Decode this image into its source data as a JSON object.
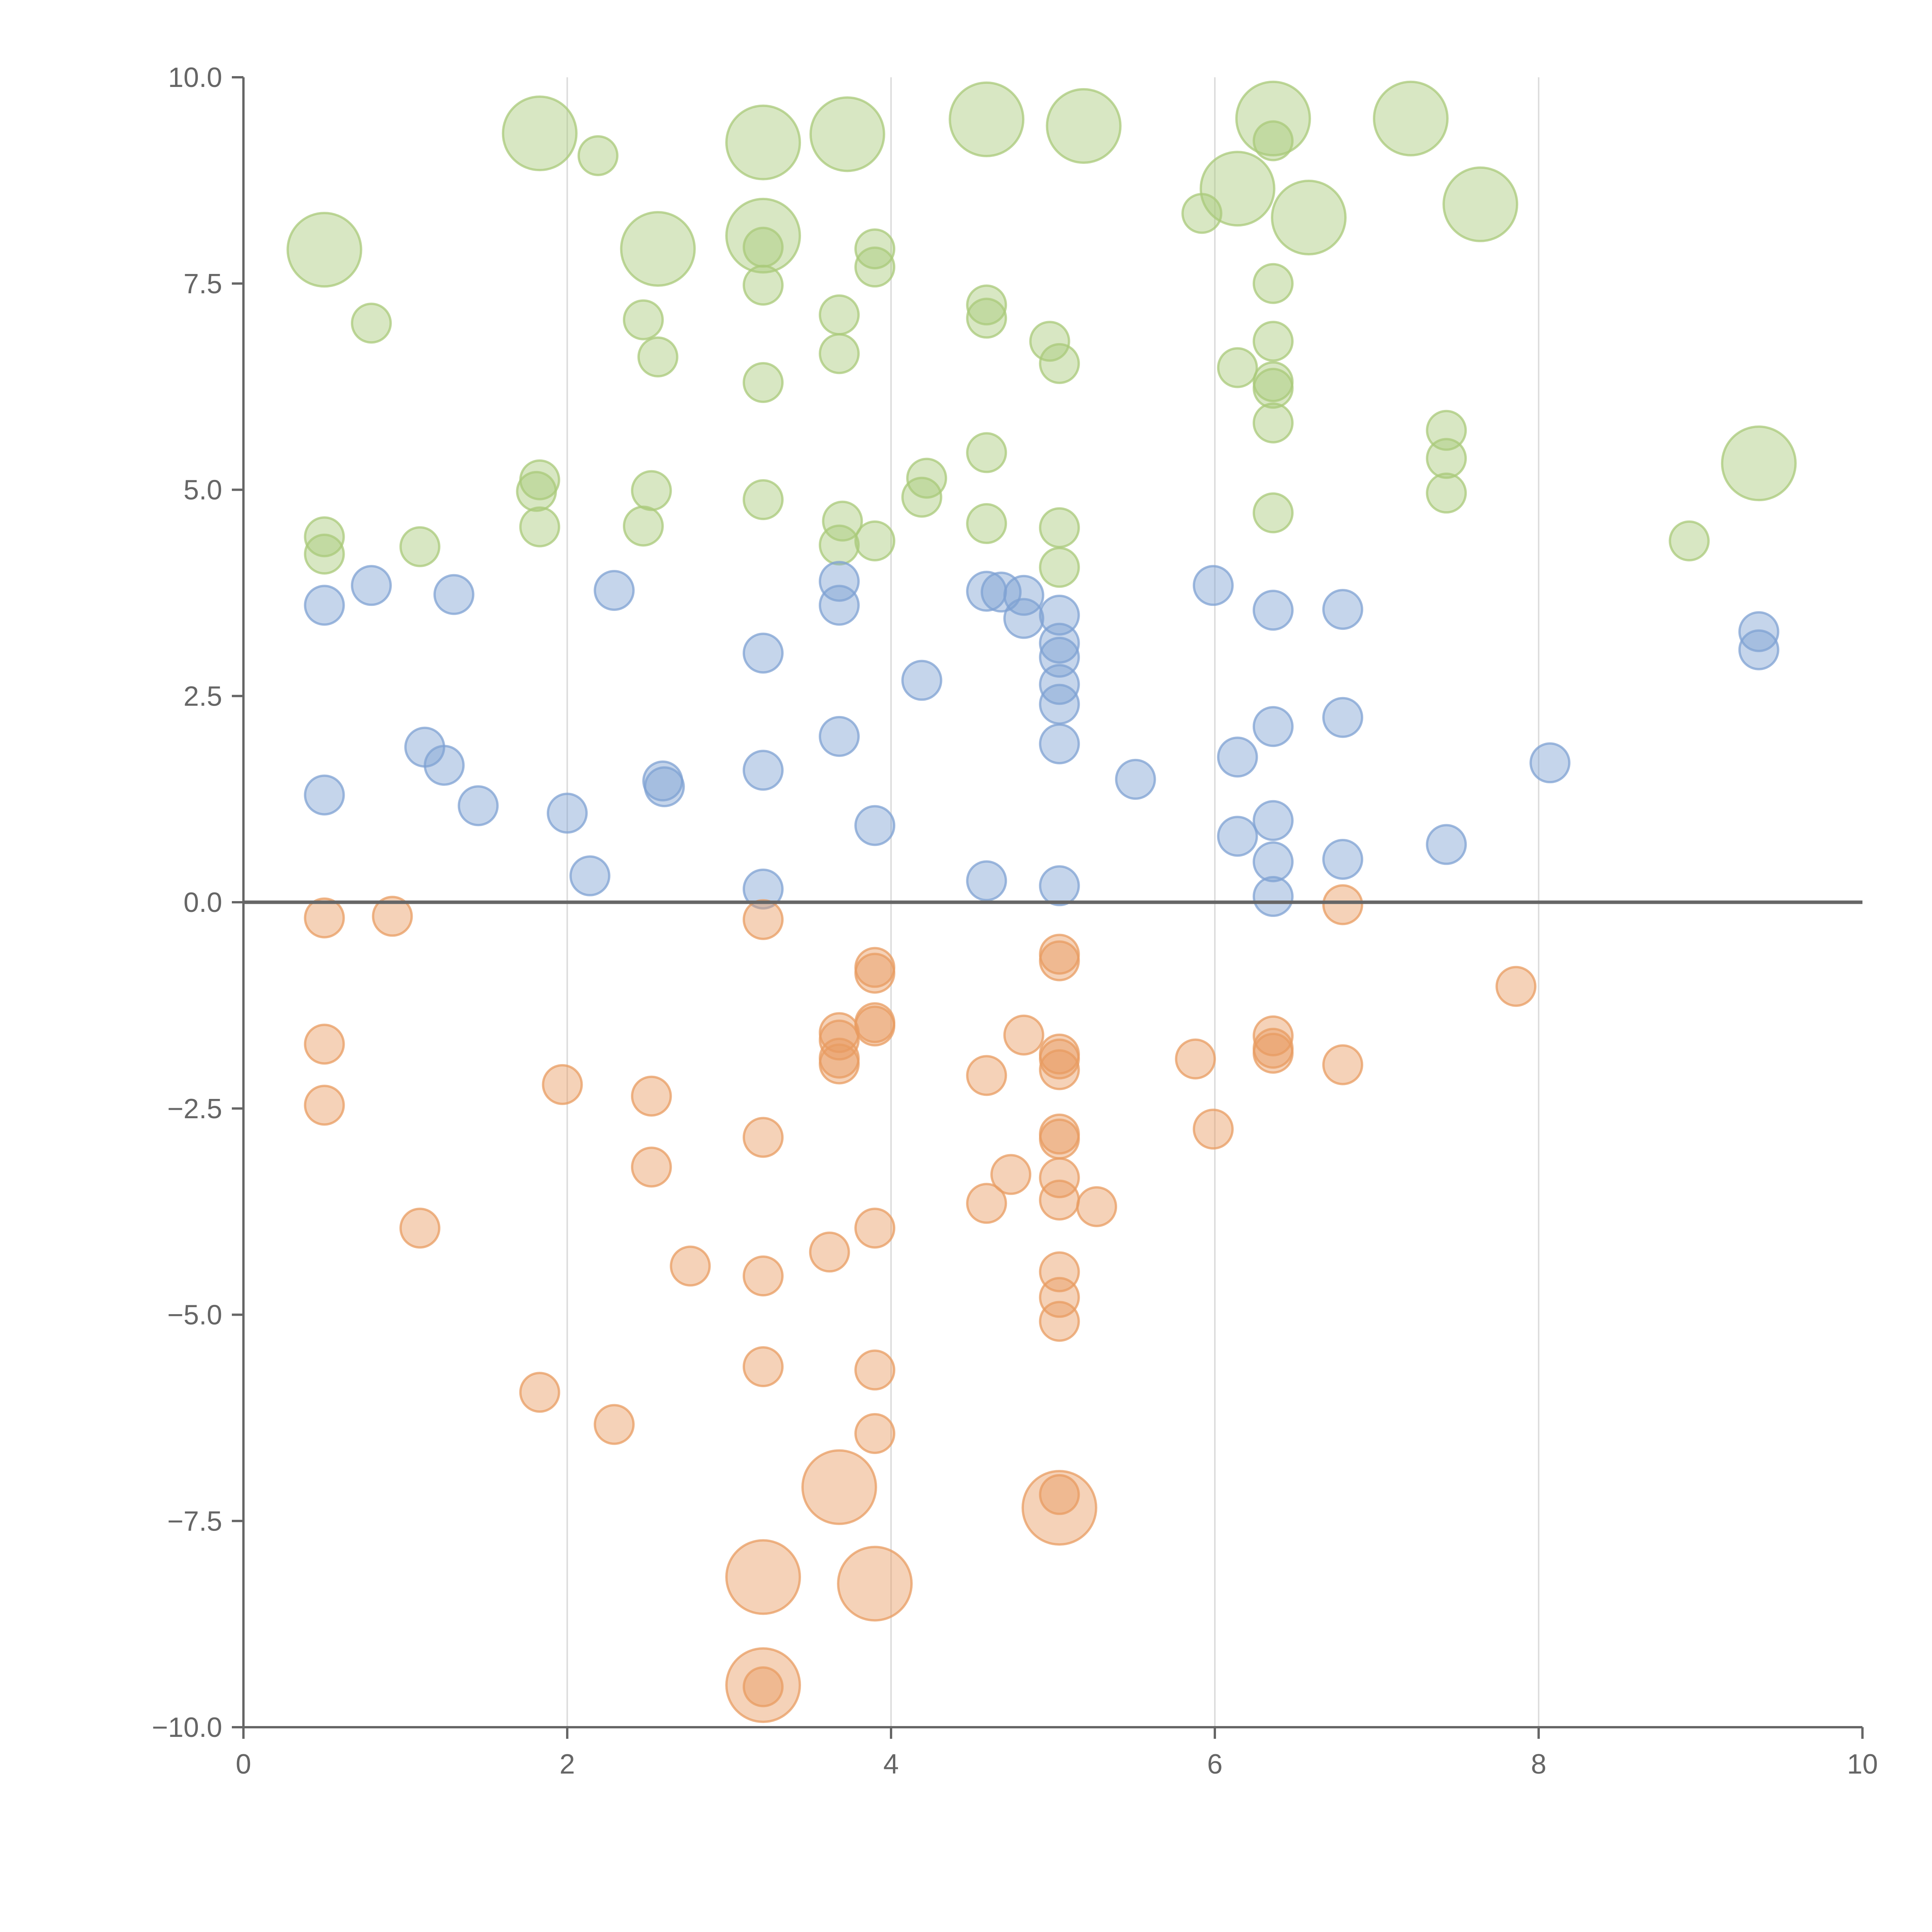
{
  "chart_data": {
    "type": "scatter",
    "title": "",
    "xlabel": "",
    "ylabel": "",
    "xlim": [
      0,
      10
    ],
    "ylim": [
      -10,
      10
    ],
    "x_ticks": [
      "0",
      "2",
      "4",
      "6",
      "8",
      "10"
    ],
    "y_ticks": [
      "10.0",
      "7.5",
      "5.0",
      "2.5",
      "0.0",
      "−2.5",
      "−5.0",
      "−7.5",
      "−10.0"
    ],
    "x_grid": [
      2,
      4,
      6,
      8
    ],
    "zero_line": 0,
    "colors": {
      "green": "#a9c97a",
      "blue": "#7fa1d3",
      "orange": "#e89c62"
    },
    "series": [
      {
        "name": "green",
        "color": "#a9c97a",
        "points": [
          {
            "x": 1.83,
            "y": 9.32,
            "s": 3
          },
          {
            "x": 2.19,
            "y": 9.05,
            "s": 1
          },
          {
            "x": 3.21,
            "y": 9.21,
            "s": 3
          },
          {
            "x": 3.73,
            "y": 9.31,
            "s": 3
          },
          {
            "x": 4.59,
            "y": 9.49,
            "s": 3
          },
          {
            "x": 5.19,
            "y": 9.41,
            "s": 3
          },
          {
            "x": 6.36,
            "y": 9.5,
            "s": 3
          },
          {
            "x": 7.21,
            "y": 9.5,
            "s": 3
          },
          {
            "x": 6.36,
            "y": 9.23,
            "s": 1
          },
          {
            "x": 6.14,
            "y": 8.65,
            "s": 3
          },
          {
            "x": 6.58,
            "y": 8.3,
            "s": 3
          },
          {
            "x": 5.92,
            "y": 8.35,
            "s": 1
          },
          {
            "x": 7.64,
            "y": 8.46,
            "s": 3
          },
          {
            "x": 0.5,
            "y": 7.91,
            "s": 3
          },
          {
            "x": 2.56,
            "y": 7.92,
            "s": 3
          },
          {
            "x": 3.21,
            "y": 8.08,
            "s": 3
          },
          {
            "x": 3.21,
            "y": 7.94,
            "s": 1
          },
          {
            "x": 3.9,
            "y": 7.92,
            "s": 1
          },
          {
            "x": 3.9,
            "y": 7.7,
            "s": 1
          },
          {
            "x": 3.21,
            "y": 7.48,
            "s": 1
          },
          {
            "x": 6.36,
            "y": 7.5,
            "s": 1
          },
          {
            "x": 0.79,
            "y": 7.02,
            "s": 1
          },
          {
            "x": 2.47,
            "y": 7.06,
            "s": 1
          },
          {
            "x": 3.68,
            "y": 7.12,
            "s": 1
          },
          {
            "x": 4.59,
            "y": 7.24,
            "s": 1
          },
          {
            "x": 4.59,
            "y": 7.08,
            "s": 1
          },
          {
            "x": 4.98,
            "y": 6.8,
            "s": 1
          },
          {
            "x": 5.04,
            "y": 6.53,
            "s": 1
          },
          {
            "x": 6.36,
            "y": 6.8,
            "s": 1
          },
          {
            "x": 2.56,
            "y": 6.61,
            "s": 1
          },
          {
            "x": 3.68,
            "y": 6.65,
            "s": 1
          },
          {
            "x": 6.14,
            "y": 6.48,
            "s": 1
          },
          {
            "x": 3.21,
            "y": 6.3,
            "s": 1
          },
          {
            "x": 6.36,
            "y": 6.31,
            "s": 1
          },
          {
            "x": 6.36,
            "y": 6.23,
            "s": 1
          },
          {
            "x": 6.36,
            "y": 5.81,
            "s": 1
          },
          {
            "x": 7.43,
            "y": 5.72,
            "s": 1
          },
          {
            "x": 4.59,
            "y": 5.45,
            "s": 1
          },
          {
            "x": 7.43,
            "y": 5.38,
            "s": 1
          },
          {
            "x": 9.36,
            "y": 5.32,
            "s": 3
          },
          {
            "x": 1.83,
            "y": 5.12,
            "s": 1
          },
          {
            "x": 1.81,
            "y": 4.98,
            "s": 1
          },
          {
            "x": 2.52,
            "y": 4.99,
            "s": 1
          },
          {
            "x": 4.22,
            "y": 5.14,
            "s": 1
          },
          {
            "x": 4.19,
            "y": 4.91,
            "s": 1
          },
          {
            "x": 7.43,
            "y": 4.96,
            "s": 1
          },
          {
            "x": 3.21,
            "y": 4.88,
            "s": 1
          },
          {
            "x": 6.36,
            "y": 4.72,
            "s": 1
          },
          {
            "x": 3.7,
            "y": 4.62,
            "s": 1
          },
          {
            "x": 4.59,
            "y": 4.59,
            "s": 1
          },
          {
            "x": 5.04,
            "y": 4.54,
            "s": 1
          },
          {
            "x": 1.83,
            "y": 4.55,
            "s": 1
          },
          {
            "x": 2.47,
            "y": 4.56,
            "s": 1
          },
          {
            "x": 0.5,
            "y": 4.43,
            "s": 1
          },
          {
            "x": 0.5,
            "y": 4.22,
            "s": 1
          },
          {
            "x": 1.09,
            "y": 4.31,
            "s": 1
          },
          {
            "x": 3.68,
            "y": 4.33,
            "s": 1
          },
          {
            "x": 3.9,
            "y": 4.38,
            "s": 1
          },
          {
            "x": 8.93,
            "y": 4.38,
            "s": 1
          },
          {
            "x": 5.04,
            "y": 4.06,
            "s": 1
          }
        ]
      },
      {
        "name": "blue",
        "color": "#7fa1d3",
        "points": [
          {
            "x": 0.5,
            "y": 3.6,
            "s": 1
          },
          {
            "x": 0.79,
            "y": 3.84,
            "s": 1
          },
          {
            "x": 1.3,
            "y": 3.73,
            "s": 1
          },
          {
            "x": 2.29,
            "y": 3.78,
            "s": 1
          },
          {
            "x": 3.68,
            "y": 3.89,
            "s": 1
          },
          {
            "x": 3.68,
            "y": 3.6,
            "s": 1
          },
          {
            "x": 4.59,
            "y": 3.77,
            "s": 1
          },
          {
            "x": 4.68,
            "y": 3.76,
            "s": 1
          },
          {
            "x": 4.82,
            "y": 3.72,
            "s": 1
          },
          {
            "x": 4.82,
            "y": 3.44,
            "s": 1
          },
          {
            "x": 5.04,
            "y": 3.48,
            "s": 1
          },
          {
            "x": 5.04,
            "y": 3.14,
            "s": 1
          },
          {
            "x": 5.04,
            "y": 2.97,
            "s": 1
          },
          {
            "x": 5.99,
            "y": 3.84,
            "s": 1
          },
          {
            "x": 6.36,
            "y": 3.54,
            "s": 1
          },
          {
            "x": 6.79,
            "y": 3.55,
            "s": 1
          },
          {
            "x": 9.36,
            "y": 3.28,
            "s": 1
          },
          {
            "x": 9.36,
            "y": 3.06,
            "s": 1
          },
          {
            "x": 3.21,
            "y": 3.02,
            "s": 1
          },
          {
            "x": 4.19,
            "y": 2.69,
            "s": 1
          },
          {
            "x": 5.04,
            "y": 2.64,
            "s": 1
          },
          {
            "x": 5.04,
            "y": 2.4,
            "s": 1
          },
          {
            "x": 6.79,
            "y": 2.24,
            "s": 1
          },
          {
            "x": 6.36,
            "y": 2.13,
            "s": 1
          },
          {
            "x": 3.68,
            "y": 2.01,
            "s": 1
          },
          {
            "x": 1.12,
            "y": 1.88,
            "s": 1
          },
          {
            "x": 5.04,
            "y": 1.92,
            "s": 1
          },
          {
            "x": 6.14,
            "y": 1.76,
            "s": 1
          },
          {
            "x": 8.07,
            "y": 1.69,
            "s": 1
          },
          {
            "x": 1.24,
            "y": 1.66,
            "s": 1
          },
          {
            "x": 3.21,
            "y": 1.6,
            "s": 1
          },
          {
            "x": 5.51,
            "y": 1.49,
            "s": 1
          },
          {
            "x": 2.59,
            "y": 1.47,
            "s": 1
          },
          {
            "x": 2.6,
            "y": 1.4,
            "s": 1
          },
          {
            "x": 0.5,
            "y": 1.3,
            "s": 1
          },
          {
            "x": 1.45,
            "y": 1.17,
            "s": 1
          },
          {
            "x": 2.0,
            "y": 1.08,
            "s": 1
          },
          {
            "x": 6.36,
            "y": 0.99,
            "s": 1
          },
          {
            "x": 3.9,
            "y": 0.93,
            "s": 1
          },
          {
            "x": 6.14,
            "y": 0.8,
            "s": 1
          },
          {
            "x": 7.43,
            "y": 0.7,
            "s": 1
          },
          {
            "x": 6.36,
            "y": 0.49,
            "s": 1
          },
          {
            "x": 6.79,
            "y": 0.52,
            "s": 1
          },
          {
            "x": 2.14,
            "y": 0.32,
            "s": 1
          },
          {
            "x": 4.59,
            "y": 0.26,
            "s": 1
          },
          {
            "x": 5.04,
            "y": 0.2,
            "s": 1
          },
          {
            "x": 3.21,
            "y": 0.16,
            "s": 1
          },
          {
            "x": 6.36,
            "y": 0.07,
            "s": 1
          }
        ]
      },
      {
        "name": "orange",
        "color": "#e89c62",
        "points": [
          {
            "x": 0.5,
            "y": -0.19,
            "s": 1
          },
          {
            "x": 0.92,
            "y": -0.17,
            "s": 1
          },
          {
            "x": 3.21,
            "y": -0.21,
            "s": 1
          },
          {
            "x": 6.79,
            "y": -0.03,
            "s": 1
          },
          {
            "x": 5.04,
            "y": -0.63,
            "s": 1
          },
          {
            "x": 5.04,
            "y": -0.71,
            "s": 1
          },
          {
            "x": 3.9,
            "y": -0.79,
            "s": 1
          },
          {
            "x": 3.9,
            "y": -0.86,
            "s": 1
          },
          {
            "x": 7.86,
            "y": -1.02,
            "s": 1
          },
          {
            "x": 3.9,
            "y": -1.46,
            "s": 1
          },
          {
            "x": 3.9,
            "y": -1.5,
            "s": 1
          },
          {
            "x": 3.68,
            "y": -1.58,
            "s": 1
          },
          {
            "x": 3.68,
            "y": -1.67,
            "s": 1
          },
          {
            "x": 4.82,
            "y": -1.61,
            "s": 1
          },
          {
            "x": 6.36,
            "y": -1.62,
            "s": 1
          },
          {
            "x": 0.5,
            "y": -1.72,
            "s": 1
          },
          {
            "x": 6.36,
            "y": -1.77,
            "s": 1
          },
          {
            "x": 6.36,
            "y": -1.83,
            "s": 1
          },
          {
            "x": 5.04,
            "y": -1.84,
            "s": 1
          },
          {
            "x": 5.04,
            "y": -1.9,
            "s": 1
          },
          {
            "x": 3.68,
            "y": -1.89,
            "s": 1
          },
          {
            "x": 3.68,
            "y": -1.96,
            "s": 1
          },
          {
            "x": 5.88,
            "y": -1.9,
            "s": 1
          },
          {
            "x": 6.79,
            "y": -1.97,
            "s": 1
          },
          {
            "x": 5.04,
            "y": -2.03,
            "s": 1
          },
          {
            "x": 4.59,
            "y": -2.1,
            "s": 1
          },
          {
            "x": 1.97,
            "y": -2.21,
            "s": 1
          },
          {
            "x": 2.52,
            "y": -2.35,
            "s": 1
          },
          {
            "x": 0.5,
            "y": -2.46,
            "s": 1
          },
          {
            "x": 5.99,
            "y": -2.75,
            "s": 1
          },
          {
            "x": 5.04,
            "y": -2.81,
            "s": 1
          },
          {
            "x": 5.04,
            "y": -2.87,
            "s": 1
          },
          {
            "x": 3.21,
            "y": -2.85,
            "s": 1
          },
          {
            "x": 2.52,
            "y": -3.21,
            "s": 1
          },
          {
            "x": 4.74,
            "y": -3.3,
            "s": 1
          },
          {
            "x": 5.04,
            "y": -3.34,
            "s": 1
          },
          {
            "x": 5.04,
            "y": -3.61,
            "s": 1
          },
          {
            "x": 4.59,
            "y": -3.65,
            "s": 1
          },
          {
            "x": 5.27,
            "y": -3.69,
            "s": 1
          },
          {
            "x": 1.09,
            "y": -3.95,
            "s": 1
          },
          {
            "x": 3.9,
            "y": -3.95,
            "s": 1
          },
          {
            "x": 3.62,
            "y": -4.24,
            "s": 1
          },
          {
            "x": 2.76,
            "y": -4.41,
            "s": 1
          },
          {
            "x": 5.04,
            "y": -4.48,
            "s": 1
          },
          {
            "x": 3.21,
            "y": -4.53,
            "s": 1
          },
          {
            "x": 5.04,
            "y": -4.79,
            "s": 1
          },
          {
            "x": 5.04,
            "y": -5.08,
            "s": 1
          },
          {
            "x": 3.21,
            "y": -5.63,
            "s": 1
          },
          {
            "x": 3.9,
            "y": -5.67,
            "s": 1
          },
          {
            "x": 1.83,
            "y": -5.94,
            "s": 1
          },
          {
            "x": 2.29,
            "y": -6.33,
            "s": 1
          },
          {
            "x": 3.9,
            "y": -6.44,
            "s": 1
          },
          {
            "x": 3.68,
            "y": -7.09,
            "s": 3
          },
          {
            "x": 5.04,
            "y": -7.18,
            "s": 1
          },
          {
            "x": 5.04,
            "y": -7.34,
            "s": 3
          },
          {
            "x": 3.21,
            "y": -8.18,
            "s": 3
          },
          {
            "x": 3.9,
            "y": -8.26,
            "s": 3
          },
          {
            "x": 3.21,
            "y": -9.49,
            "s": 3
          },
          {
            "x": 3.21,
            "y": -9.51,
            "s": 1
          }
        ]
      }
    ]
  }
}
